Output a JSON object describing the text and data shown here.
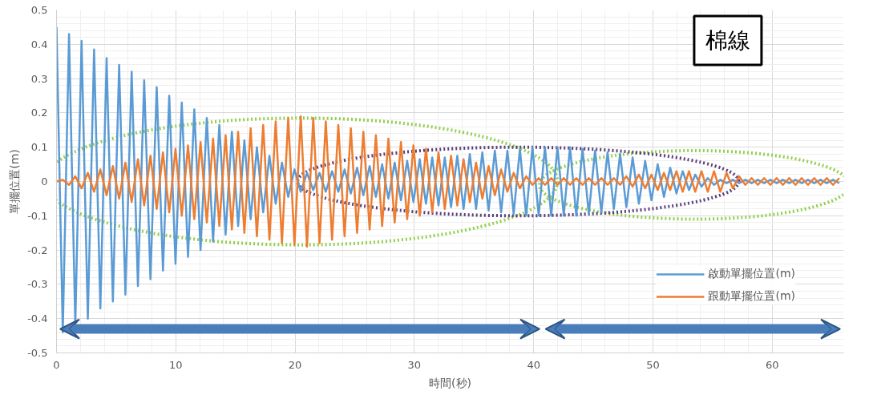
{
  "chart_data": {
    "type": "line",
    "xlabel": "時間(秒)",
    "ylabel": "單擺位置(m)",
    "annotations": [
      "棉線"
    ],
    "x": [
      0,
      0.525,
      1.05,
      1.575,
      2.1,
      2.625,
      3.15,
      3.675,
      4.2,
      4.725,
      5.25,
      5.775,
      6.3,
      6.825,
      7.35,
      7.875,
      8.4,
      8.925,
      9.45,
      9.975,
      10.5,
      11.025,
      11.55,
      12.075,
      12.6,
      13.125,
      13.65,
      14.175,
      14.7,
      15.225,
      15.75,
      16.275,
      16.8,
      17.325,
      17.85,
      18.375,
      18.9,
      19.425,
      19.95,
      20.475,
      21,
      21.525,
      22.05,
      22.575,
      23.1,
      23.625,
      24.15,
      24.675,
      25.2,
      25.725,
      26.25,
      26.775,
      27.3,
      27.825,
      28.35,
      28.875,
      29.4,
      29.925,
      30.45,
      30.975,
      31.5,
      32.025,
      32.55,
      33.075,
      33.6,
      34.125,
      34.65,
      35.175,
      35.7,
      36.225,
      36.75,
      37.275,
      37.8,
      38.325,
      38.85,
      39.375,
      39.9,
      40.425,
      40.95,
      41.475,
      42,
      42.525,
      43.05,
      43.575,
      44.1,
      44.625,
      45.15,
      45.675,
      46.2,
      46.725,
      47.25,
      47.775,
      48.3,
      48.825,
      49.35,
      49.875,
      50.4,
      50.925,
      51.45,
      51.975,
      52.5,
      53.025,
      53.55,
      54.075,
      54.6,
      55.125,
      55.65,
      56.175,
      56.7,
      57.225,
      57.75,
      58.275,
      58.8,
      59.325,
      59.85,
      60.375,
      60.9,
      61.425,
      61.95,
      62.475,
      63,
      63.525,
      64.05,
      64.575,
      65.1,
      65.625
    ],
    "series": [
      {
        "name": "啟動單擺位置(m)",
        "color": "#5b9bd5",
        "values": [
          0.45,
          -0.44,
          0.43,
          -0.42,
          0.41,
          -0.4,
          0.385,
          -0.37,
          0.36,
          -0.35,
          0.34,
          -0.33,
          0.32,
          -0.305,
          0.295,
          -0.285,
          0.275,
          -0.26,
          0.25,
          -0.24,
          0.23,
          -0.22,
          0.21,
          -0.2,
          0.185,
          -0.175,
          0.165,
          -0.155,
          0.145,
          -0.13,
          0.12,
          -0.11,
          0.1,
          -0.09,
          0.075,
          -0.065,
          0.055,
          -0.045,
          0.035,
          -0.03,
          0.025,
          -0.025,
          0.025,
          -0.03,
          0.03,
          -0.03,
          0.035,
          -0.035,
          0.04,
          -0.04,
          0.045,
          -0.045,
          0.05,
          -0.05,
          0.055,
          -0.055,
          0.06,
          -0.06,
          0.065,
          -0.065,
          0.07,
          -0.07,
          0.07,
          -0.075,
          0.075,
          -0.08,
          0.08,
          -0.08,
          0.085,
          -0.085,
          0.09,
          -0.09,
          0.09,
          -0.095,
          0.095,
          -0.1,
          0.1,
          -0.1,
          0.1,
          -0.1,
          0.1,
          -0.1,
          0.1,
          -0.1,
          0.095,
          -0.095,
          0.09,
          -0.09,
          0.085,
          -0.08,
          0.08,
          -0.075,
          0.07,
          -0.065,
          0.06,
          -0.055,
          0.05,
          -0.045,
          0.04,
          -0.035,
          0.03,
          -0.025,
          0.02,
          -0.015,
          0.01,
          -0.01,
          0.005,
          -0.005,
          0.005,
          -0.005,
          0.005,
          -0.005,
          0.005,
          -0.005,
          0.005,
          -0.005,
          0.005,
          -0.005,
          0.005,
          -0.005,
          0.005,
          -0.005,
          0.005,
          -0.005,
          0.005,
          -0.005
        ]
      },
      {
        "name": "跟動單擺位置(m)",
        "color": "#ed7d31",
        "values": [
          0,
          0.005,
          -0.01,
          0.015,
          -0.02,
          0.025,
          -0.03,
          0.035,
          -0.04,
          0.045,
          -0.05,
          0.055,
          -0.06,
          0.065,
          -0.07,
          0.075,
          -0.08,
          0.085,
          -0.09,
          0.095,
          -0.1,
          0.105,
          -0.11,
          0.115,
          -0.12,
          0.125,
          -0.13,
          0.135,
          -0.14,
          0.145,
          -0.15,
          0.155,
          -0.16,
          0.165,
          -0.17,
          0.175,
          -0.18,
          0.185,
          -0.185,
          0.19,
          -0.19,
          0.185,
          -0.18,
          0.175,
          -0.17,
          0.165,
          -0.16,
          0.155,
          -0.15,
          0.145,
          -0.14,
          0.135,
          -0.13,
          0.125,
          -0.12,
          0.115,
          -0.11,
          0.105,
          -0.1,
          0.095,
          -0.09,
          0.085,
          -0.08,
          0.075,
          -0.07,
          0.065,
          -0.06,
          0.055,
          -0.05,
          0.045,
          -0.04,
          0.035,
          -0.03,
          0.025,
          -0.02,
          0.015,
          -0.01,
          0.01,
          -0.01,
          0.01,
          -0.01,
          0.01,
          -0.01,
          0.01,
          -0.01,
          0.01,
          -0.01,
          0.01,
          -0.01,
          0.01,
          -0.01,
          0.015,
          -0.015,
          0.02,
          -0.02,
          0.02,
          -0.025,
          0.025,
          -0.025,
          0.03,
          -0.03,
          0.03,
          -0.03,
          0.03,
          -0.03,
          0.03,
          -0.03,
          0.025,
          -0.02,
          0.015,
          -0.01,
          0.01,
          -0.01,
          0.01,
          -0.01,
          0.01,
          -0.01,
          0.01,
          -0.01,
          0.01,
          -0.01,
          0.01,
          -0.01,
          0.01,
          -0.01,
          0.01
        ]
      }
    ],
    "xlim": [
      0,
      66
    ],
    "xticks": [
      0,
      10,
      20,
      30,
      40,
      50,
      60
    ],
    "ylim": [
      -0.5,
      0.5
    ],
    "yticks": [
      -0.5,
      -0.4,
      -0.3,
      -0.2,
      -0.1,
      0,
      0.1,
      0.2,
      0.3,
      0.4,
      0.5
    ],
    "grid": true,
    "legend": "bottom right",
    "marker": "none",
    "line_style": "solid"
  }
}
